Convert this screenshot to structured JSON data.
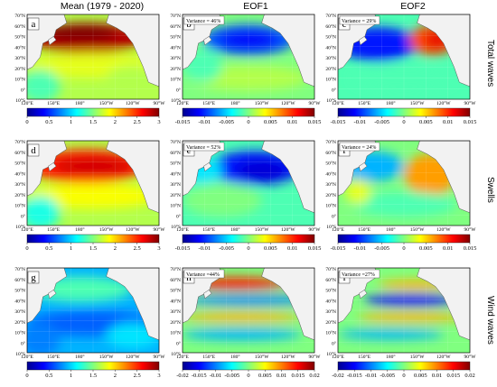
{
  "figure": {
    "columns": [
      "Mean (1979 - 2020)",
      "EOF1",
      "EOF2"
    ],
    "rows": [
      "Total waves",
      "Swells",
      "Wind waves"
    ],
    "lat_labels": [
      "70°N",
      "60°N",
      "50°N",
      "40°N",
      "30°N",
      "20°N",
      "10°N",
      "0°",
      "10°S"
    ],
    "lon_labels": [
      "120°E",
      "150°E",
      "180°",
      "150°W",
      "120°W",
      "90°W"
    ],
    "panels": [
      {
        "letter": "a",
        "variance": "",
        "colorbar": [
          "0",
          "0.5",
          "1",
          "1.5",
          "2",
          "2.5",
          "3"
        ],
        "pattern": "mean_total"
      },
      {
        "letter": "b",
        "variance": "Variance = 46%",
        "colorbar": [
          "-0.015",
          "-0.01",
          "-0.005",
          "0",
          "0.005",
          "0.01",
          "0.015"
        ],
        "pattern": "eof1_total"
      },
      {
        "letter": "c",
        "variance": "Variance = 29%",
        "colorbar": [
          "-0.015",
          "-0.01",
          "-0.005",
          "0",
          "0.005",
          "0.01",
          "0.015"
        ],
        "pattern": "eof2_total"
      },
      {
        "letter": "d",
        "variance": "",
        "colorbar": [
          "0",
          "0.5",
          "1",
          "1.5",
          "2",
          "2.5",
          "3"
        ],
        "pattern": "mean_swell"
      },
      {
        "letter": "e",
        "variance": "Variance = 52%",
        "colorbar": [
          "-0.015",
          "-0.01",
          "-0.005",
          "0",
          "0.005",
          "0.01",
          "0.015"
        ],
        "pattern": "eof1_swell"
      },
      {
        "letter": "f",
        "variance": "Variance = 24%",
        "colorbar": [
          "-0.015",
          "-0.01",
          "-0.005",
          "0",
          "0.005",
          "0.01",
          "0.015"
        ],
        "pattern": "eof2_swell"
      },
      {
        "letter": "g",
        "variance": "",
        "colorbar": [
          "0",
          "0.5",
          "1",
          "1.5",
          "2",
          "2.5",
          "3"
        ],
        "pattern": "mean_wind"
      },
      {
        "letter": "h",
        "variance": "Variance =44%",
        "colorbar": [
          "-0.02",
          "-0.015",
          "-0.01",
          "-0.005",
          "0",
          "0.005",
          "0.01",
          "0.015",
          "0.02"
        ],
        "pattern": "eof1_wind"
      },
      {
        "letter": "i",
        "variance": "Variance =27%",
        "colorbar": [
          "-0.02",
          "-0.015",
          "-0.01",
          "-0.005",
          "0",
          "0.005",
          "0.01",
          "0.015",
          "0.02"
        ],
        "pattern": "eof2_wind"
      }
    ],
    "colors": {
      "land": "#f2f2f2",
      "coast": "#555555",
      "jet_low": "#00008f",
      "jet_high": "#8b0000"
    }
  }
}
